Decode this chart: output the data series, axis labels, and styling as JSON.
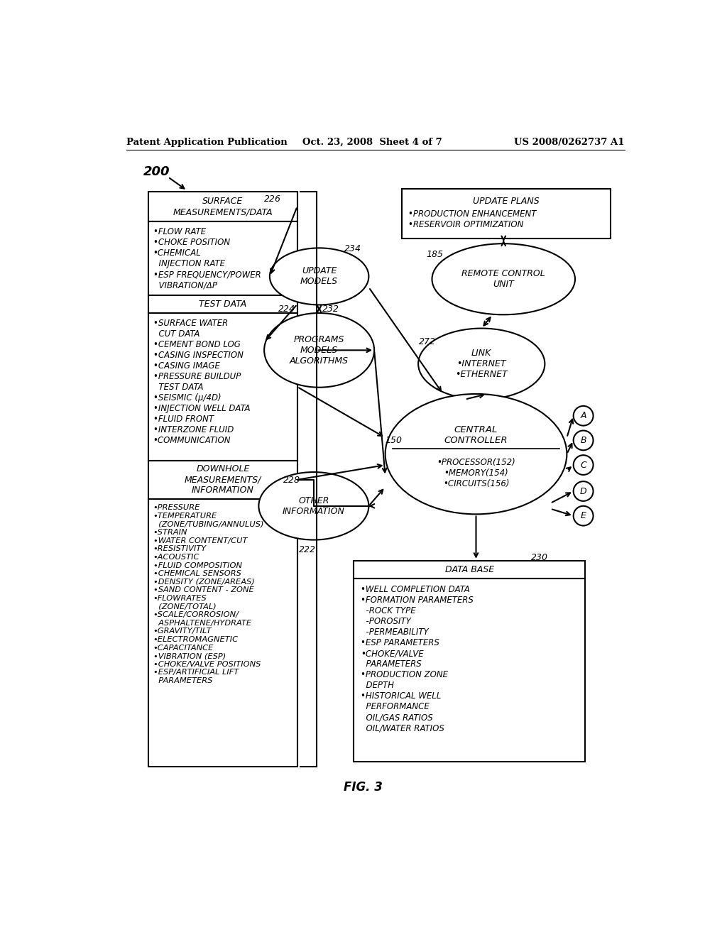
{
  "background": "#ffffff",
  "header": {
    "left": "Patent Application Publication",
    "center": "Oct. 23, 2008  Sheet 4 of 7",
    "right": "US 2008/0262737 A1"
  },
  "fig_label": "FIG. 3",
  "label_200": "200",
  "label_226": "226",
  "label_224": "224",
  "label_232": "232",
  "label_234": "234",
  "label_185": "185",
  "label_272": "272",
  "label_150": "150",
  "label_228": "228",
  "label_222": "222",
  "label_230": "230",
  "box_surface_title": "SURFACE\nMEASUREMENTS/DATA",
  "box_surface_items": "•FLOW RATE\n•CHOKE POSITION\n•CHEMICAL\n  INJECTION RATE\n•ESP FREQUENCY/POWER\n  VIBRATION/ΔP",
  "box_test_title": "TEST DATA",
  "box_test_items": "•SURFACE WATER\n  CUT DATA\n•CEMENT BOND LOG\n•CASING INSPECTION\n•CASING IMAGE\n•PRESSURE BUILDUP\n  TEST DATA\n•SEISMIC (μ/4D)\n•INJECTION WELL DATA\n•FLUID FRONT\n•INTERZONE FLUID\n•COMMUNICATION",
  "box_downhole_title": "DOWNHOLE\nMEASUREMENTS/\nINFORMATION",
  "box_downhole_items": "•PRESSURE\n•TEMPERATURE\n  (ZONE/TUBING/ANNULUS)\n•STRAIN\n•WATER CONTENT/CUT\n•RESISTIVITY\n•ACOUSTIC\n•FLUID COMPOSITION\n•CHEMICAL SENSORS\n•DENSITY (ZONE/AREAS)\n•SAND CONTENT - ZONE\n•FLOWRATES\n  (ZONE/TOTAL)\n•SCALE/CORROSION/\n  ASPHALTENE/HYDRATE\n•GRAVITY/TILT\n•ELECTROMAGNETIC\n•CAPACITANCE\n•VIBRATION (ESP)\n•CHOKE/VALVE POSITIONS\n•ESP/ARTIFICIAL LIFT\n  PARAMETERS",
  "box_update_plans_title": "UPDATE PLANS",
  "box_update_plans_items": "•PRODUCTION ENHANCEMENT\n•RESERVOIR OPTIMIZATION",
  "ellipse_update_models": "UPDATE\nMODELS",
  "ellipse_programs": "PROGRAMS\nMODELS\nALGORITHMS",
  "ellipse_remote": "REMOTE CONTROL\nUNIT",
  "ellipse_link": "LINK\n•INTERNET\n•ETHERNET",
  "ellipse_central_top": "CENTRAL\nCONTROLLER",
  "ellipse_central_bottom": "•PROCESSOR(152)\n•MEMORY(154)\n•CIRCUITS(156)",
  "ellipse_other": "OTHER\nINFORMATION",
  "box_database_title": "DATA BASE",
  "box_database_items": "•WELL COMPLETION DATA\n•FORMATION PARAMETERS\n  -ROCK TYPE\n  -POROSITY\n  -PERMEABILITY\n•ESP PARAMETERS\n•CHOKE/VALVE\n  PARAMETERS\n•PRODUCTION ZONE\n  DEPTH\n•HISTORICAL WELL\n  PERFORMANCE\n  OIL/GAS RATIOS\n  OIL/WATER RATIOS",
  "circles_right": [
    "A",
    "B",
    "C",
    "D",
    "E"
  ]
}
